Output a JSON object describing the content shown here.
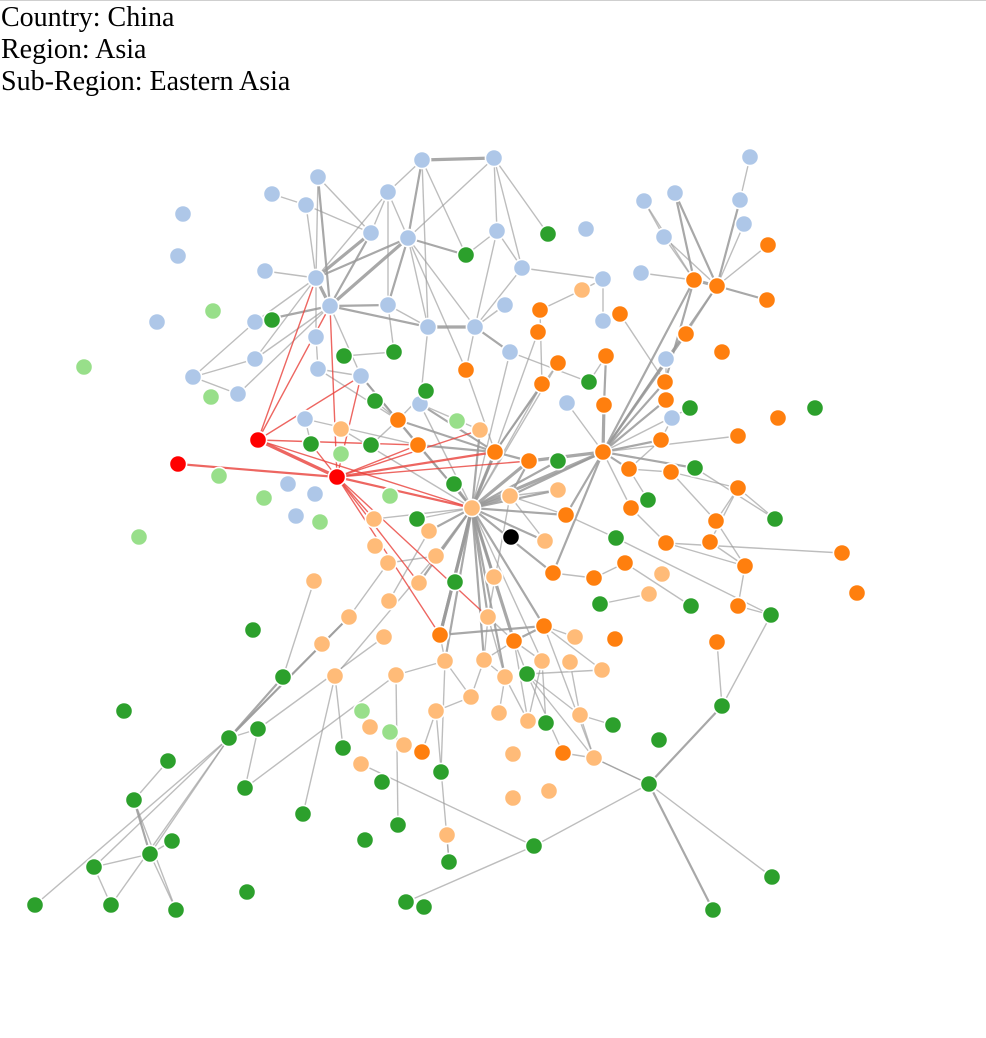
{
  "info": {
    "country": "Country: China",
    "region": "Region: Asia",
    "subregion": "Sub-Region: Eastern Asia"
  },
  "colors": {
    "light_blue": "#aec7e8",
    "orange": "#ff7f0e",
    "light_orange": "#ffbb78",
    "green": "#2ca02c",
    "light_green": "#98df8a",
    "highlight_red": "#ff0000",
    "selected": "#000000",
    "edge_gray": "#999999",
    "edge_red": "#e8403a"
  }
}
